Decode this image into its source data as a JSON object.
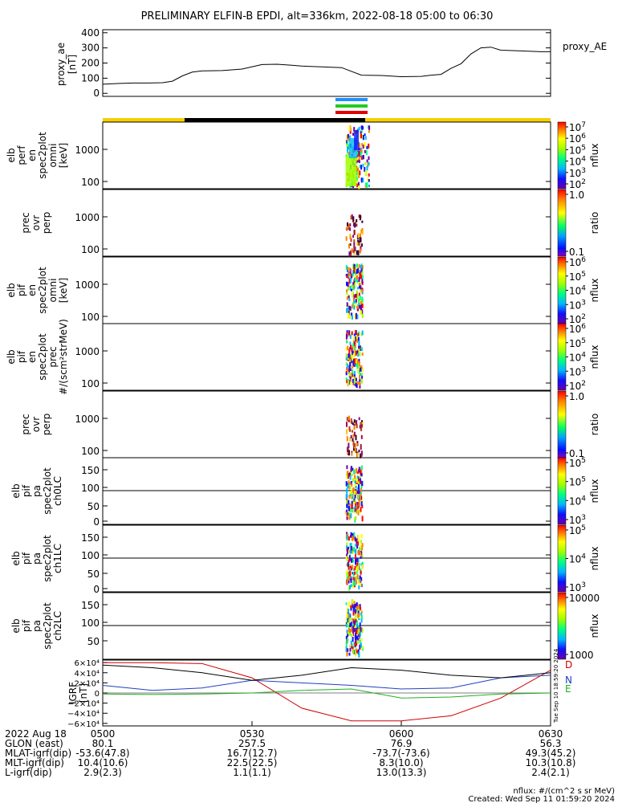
{
  "title": "PRELIMINARY ELFIN-B EPDI, alt=336km, 2022-08-18 05:00 to 06:30",
  "colors": {
    "ae_line": "#000000",
    "orbit_yellow": "#f5d000",
    "orbit_black": "#000000",
    "bar_blue": "#1e90ff",
    "bar_green": "#22cc22",
    "bar_red": "#e00000",
    "igrf_d": "#d00000",
    "igrf_n": "#2040c0",
    "igrf_e": "#20b020",
    "igrf_total": "#000000"
  },
  "chart_data": [
    {
      "type": "line",
      "panel": "proxy_ae",
      "ylabel": "proxy_ae\n[nT]",
      "legend": "proxy_AE",
      "ylim": [
        -20,
        420
      ],
      "yticks": [
        "400",
        "300",
        "200",
        "100",
        "0"
      ],
      "ytick_values": [
        400,
        300,
        200,
        100,
        0
      ],
      "x": [
        0,
        3,
        6,
        9,
        12,
        14,
        16,
        18,
        20,
        24,
        28,
        32,
        35,
        38,
        40,
        44,
        48,
        52,
        56,
        60,
        64,
        66,
        68,
        70,
        72,
        74,
        76,
        78,
        80,
        84,
        88,
        90
      ],
      "values": [
        60,
        65,
        68,
        68,
        70,
        80,
        115,
        140,
        148,
        150,
        160,
        190,
        192,
        185,
        180,
        175,
        170,
        120,
        118,
        110,
        112,
        120,
        125,
        165,
        195,
        260,
        300,
        305,
        285,
        280,
        275,
        275
      ],
      "grid": false
    },
    {
      "type": "heatmap",
      "panel": "elb perf en spec2plot omni",
      "ylabel": "elb\nperf\nen\nspec2plot\nomni\n[keV]",
      "yscale": "log",
      "yticks": [
        "1000",
        "100"
      ],
      "colorbar": {
        "label": "nflux",
        "ticks": [
          "10^7",
          "10^6",
          "10^5",
          "10^4",
          "10^3",
          "10^2"
        ]
      }
    },
    {
      "type": "heatmap",
      "panel": "prec ovr perp",
      "ylabel": "prec\novr\nperp",
      "yscale": "log",
      "yticks": [
        "1000",
        "100"
      ],
      "colorbar": {
        "label": "ratio",
        "ticks": [
          "1.0",
          "0.1"
        ]
      }
    },
    {
      "type": "heatmap",
      "panel": "elb pif en spec2plot omni",
      "ylabel": "elb\npif\nen\nspec2plot\nomni\n[keV]",
      "yscale": "log",
      "yticks": [
        "1000",
        "100"
      ],
      "colorbar": {
        "label": "nflux",
        "ticks": [
          "10^6",
          "10^5",
          "10^4",
          "10^3",
          "10^2"
        ]
      }
    },
    {
      "type": "heatmap",
      "panel": "elb pif en spec2plot prec",
      "ylabel": "elb\npif\nen\nspec2plot\nprec\n#/(scm²strMeV)",
      "yscale": "log",
      "yticks": [
        "1000",
        "100"
      ],
      "colorbar": {
        "label": "nflux",
        "ticks": [
          "10^6",
          "10^5",
          "10^4",
          "10^3",
          "10^2"
        ]
      }
    },
    {
      "type": "heatmap",
      "panel": "prec ovr perp 2",
      "ylabel": "prec\novr\nperp",
      "yscale": "log",
      "yticks": [
        "1000",
        "100"
      ],
      "colorbar": {
        "label": "ratio",
        "ticks": [
          "1.0",
          "0.1"
        ]
      }
    },
    {
      "type": "heatmap",
      "panel": "elb pif pa spec2plot ch0LC",
      "ylabel": "elb\npif\npa\nspec2plot\nch0LC",
      "yticks": [
        "150",
        "100",
        "50",
        "0"
      ],
      "colorbar": {
        "label": "nflux",
        "ticks": [
          "10^5",
          "10^5",
          "10^4",
          "10^3"
        ]
      }
    },
    {
      "type": "heatmap",
      "panel": "elb pif pa spec2plot ch1LC",
      "ylabel": "elb\npif\npa\nspec2plot\nch1LC",
      "yticks": [
        "150",
        "100",
        "50",
        "0"
      ],
      "colorbar": {
        "label": "nflux",
        "ticks": [
          "10^5",
          "10^4",
          "10^3"
        ]
      }
    },
    {
      "type": "heatmap",
      "panel": "elb pif pa spec2plot ch2LC",
      "ylabel": "elb\npif\npa\nspec2plot\nch2LC",
      "yticks": [
        "150",
        "100",
        "50"
      ],
      "colorbar": {
        "label": "nflux",
        "ticks": [
          "10000",
          "1000"
        ]
      }
    },
    {
      "type": "line",
      "panel": "IGRF",
      "ylabel": "IGRF\n[nT]",
      "yticks": [
        "6×10⁴",
        "4×10⁴",
        "2×10⁴",
        "0",
        "−2×10⁴",
        "−4×10⁴",
        "−6×10⁴"
      ],
      "ytick_values": [
        60000,
        40000,
        20000,
        0,
        -20000,
        -40000,
        -60000
      ],
      "ylim": [
        -65000,
        65000
      ],
      "legend": [
        "D",
        "N",
        "E"
      ],
      "x": [
        0,
        10,
        20,
        30,
        40,
        50,
        60,
        70,
        80,
        90
      ],
      "series": [
        {
          "name": "D",
          "values": [
            60000,
            60000,
            58000,
            30000,
            -30000,
            -55000,
            -55000,
            -45000,
            -10000,
            45000
          ]
        },
        {
          "name": "N",
          "values": [
            15000,
            5000,
            10000,
            25000,
            20000,
            15000,
            8000,
            10000,
            30000,
            35000
          ]
        },
        {
          "name": "E",
          "values": [
            -2000,
            -3000,
            -2000,
            0,
            5000,
            8000,
            -10000,
            -8000,
            -2000,
            0
          ]
        },
        {
          "name": "",
          "values": [
            55000,
            50000,
            40000,
            25000,
            35000,
            50000,
            45000,
            35000,
            30000,
            40000
          ]
        }
      ],
      "side_label": "Tue Sep 10 18:59:20 2024"
    }
  ],
  "xaxis": {
    "ticks": [
      "0500",
      "0530",
      "0600",
      "0630"
    ],
    "tick_minutes": [
      0,
      30,
      60,
      90
    ]
  },
  "ephemeris": {
    "rows": [
      {
        "label": "2022 Aug 18",
        "values": [
          "0500",
          "0530",
          "0600",
          "0630"
        ]
      },
      {
        "label": "GLON (east)",
        "values": [
          "80.1",
          "257.5",
          "76.9",
          "56.3"
        ]
      },
      {
        "label": "MLAT-igrf(dip)",
        "values": [
          "-53.6(47.8)",
          "16.7(12.7)",
          "-73.7(-73.6)",
          "49.3(45.2)"
        ]
      },
      {
        "label": "MLT-igrf(dip)",
        "values": [
          "10.4(10.6)",
          "22.5(22.5)",
          "8.3(10.0)",
          "10.3(10.8)"
        ]
      },
      {
        "label": "L-igrf(dip)",
        "values": [
          "2.9(2.3)",
          "1.1(1.1)",
          "13.0(13.3)",
          "2.4(2.1)"
        ]
      }
    ]
  },
  "footer": {
    "units": "nflux: #/(cm^2 s sr MeV)",
    "created": "Created: Wed Sep 11 01:59:20 2024"
  }
}
